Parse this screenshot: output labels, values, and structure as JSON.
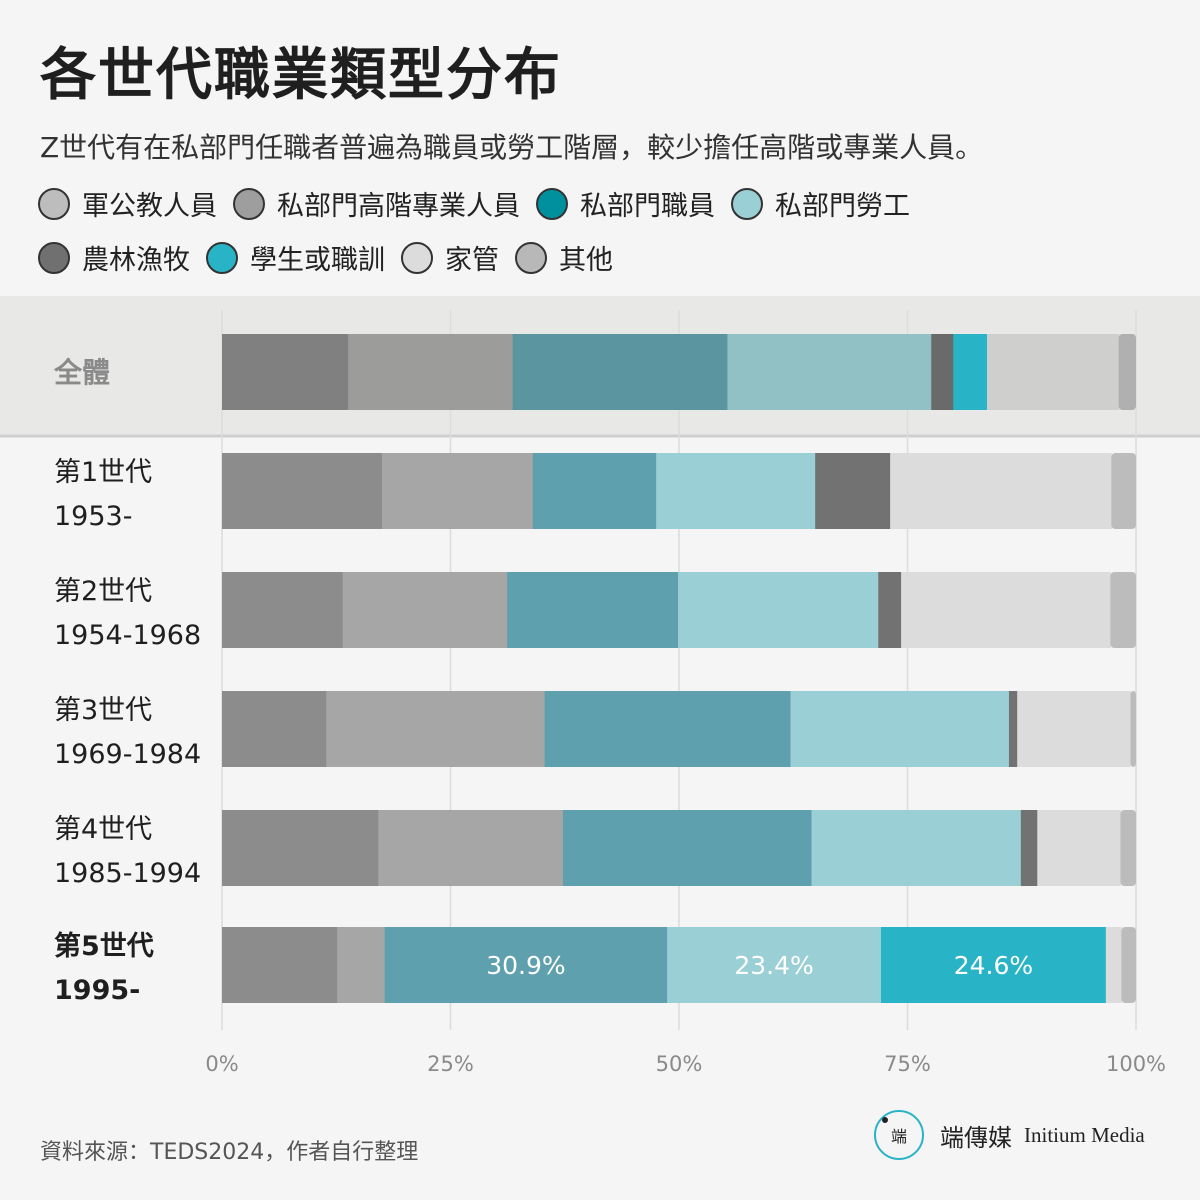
{
  "title": "各世代職業類型分布",
  "subtitle": "Z世代有在私部門任職者普遍為職員或勞工階層，較少擔任高階或專業人員。",
  "legend": [
    {
      "label": "軍公教人員",
      "color": "#bdbdbd"
    },
    {
      "label": "私部門高階專業人員",
      "color": "#9e9e9e"
    },
    {
      "label": "私部門職員",
      "color": "#00909e"
    },
    {
      "label": "私部門勞工",
      "color": "#9acfd6"
    },
    {
      "label": "農林漁牧",
      "color": "#707070"
    },
    {
      "label": "學生或職訓",
      "color": "#28b3c6"
    },
    {
      "label": "家管",
      "color": "#dcdcdc"
    },
    {
      "label": "其他",
      "color": "#b8b8b8"
    }
  ],
  "chart_data": {
    "type": "bar",
    "orientation": "horizontal",
    "stacked": true,
    "xlim": [
      0,
      100
    ],
    "x_ticks": [
      "0%",
      "25%",
      "50%",
      "75%",
      "100%"
    ],
    "categories": [
      {
        "line1": "全體",
        "line2": ""
      },
      {
        "line1": "第1世代",
        "line2": "1953-"
      },
      {
        "line1": "第2世代",
        "line2": "1954-1968"
      },
      {
        "line1": "第3世代",
        "line2": "1969-1984"
      },
      {
        "line1": "第4世代",
        "line2": "1985-1994"
      },
      {
        "line1": "第5世代",
        "line2": "1995-"
      }
    ],
    "series": [
      {
        "name": "軍公教人員",
        "values": [
          13.8,
          17.5,
          13.2,
          11.4,
          17.1,
          12.6
        ]
      },
      {
        "name": "私部門高階專業人員",
        "values": [
          18.0,
          16.5,
          18.0,
          23.9,
          20.2,
          5.2
        ]
      },
      {
        "name": "私部門職員",
        "values": [
          23.5,
          13.5,
          18.7,
          26.9,
          27.2,
          30.9
        ]
      },
      {
        "name": "私部門勞工",
        "values": [
          22.3,
          17.4,
          21.9,
          23.9,
          22.9,
          23.4
        ]
      },
      {
        "name": "農林漁牧",
        "values": [
          2.4,
          8.2,
          2.5,
          0.9,
          1.8,
          0.0
        ]
      },
      {
        "name": "學生或職訓",
        "values": [
          3.7,
          0.0,
          0.0,
          0.0,
          0.0,
          24.6
        ]
      },
      {
        "name": "家管",
        "values": [
          14.4,
          24.2,
          22.9,
          12.4,
          9.1,
          1.7
        ]
      },
      {
        "name": "其他",
        "values": [
          1.9,
          2.7,
          2.8,
          0.6,
          1.7,
          1.6
        ]
      }
    ],
    "data_labels": [
      {
        "row": 5,
        "series": 2,
        "text": "30.9%"
      },
      {
        "row": 5,
        "series": 3,
        "text": "23.4%"
      },
      {
        "row": 5,
        "series": 5,
        "text": "24.6%"
      }
    ],
    "highlight_row": 0,
    "bold_row": 5,
    "bar_colors": [
      "#8c8c8c",
      "#a6a6a6",
      "#5fa0ae",
      "#9acfd6",
      "#727272",
      "#28b3c6",
      "#dcdcdc",
      "#bcbcbc"
    ],
    "overall_bar_colors": [
      "#808080",
      "#9c9c9a",
      "#5a95a0",
      "#91c0c5",
      "#6a6a6a",
      "#28b3c6",
      "#cfcfcd",
      "#b0b0b0"
    ],
    "grid": true,
    "legend_position": "top"
  },
  "source": "資料來源：TEDS2024，作者自行整理",
  "logo": {
    "mark": "端",
    "cn": "端傳媒",
    "en": "Initium Media"
  }
}
